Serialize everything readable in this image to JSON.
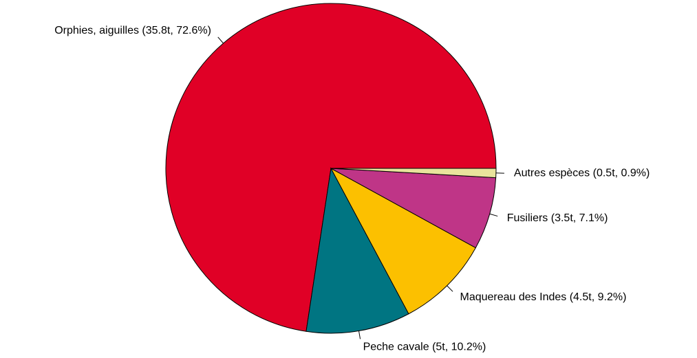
{
  "chart_data": {
    "type": "pie",
    "categories": [
      "Orphies, aiguilles (35.8t, 72.6%)",
      "Peche cavale (5t, 10.2%)",
      "Maquereau des Indes (4.5t, 9.2%)",
      "Fusiliers (3.5t, 7.1%)",
      "Autres espèces (0.5t, 0.9%)"
    ],
    "values": [
      72.6,
      10.2,
      9.2,
      7.1,
      0.9
    ],
    "colors": [
      "#e00026",
      "#007582",
      "#fcc000",
      "#bf3587",
      "#e9e39c"
    ]
  }
}
